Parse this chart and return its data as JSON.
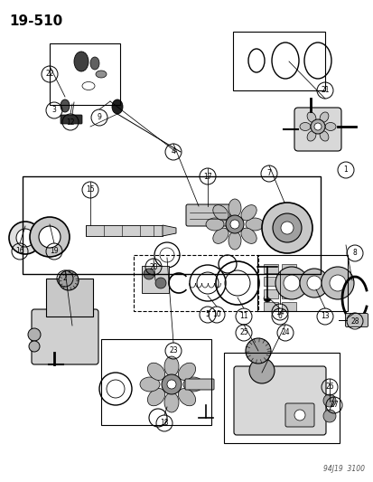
{
  "title": "19–510",
  "footer": "94J19  3100",
  "bg_color": "#ffffff",
  "fg_color": "#000000",
  "fig_width": 4.14,
  "fig_height": 5.33,
  "dpi": 100
}
